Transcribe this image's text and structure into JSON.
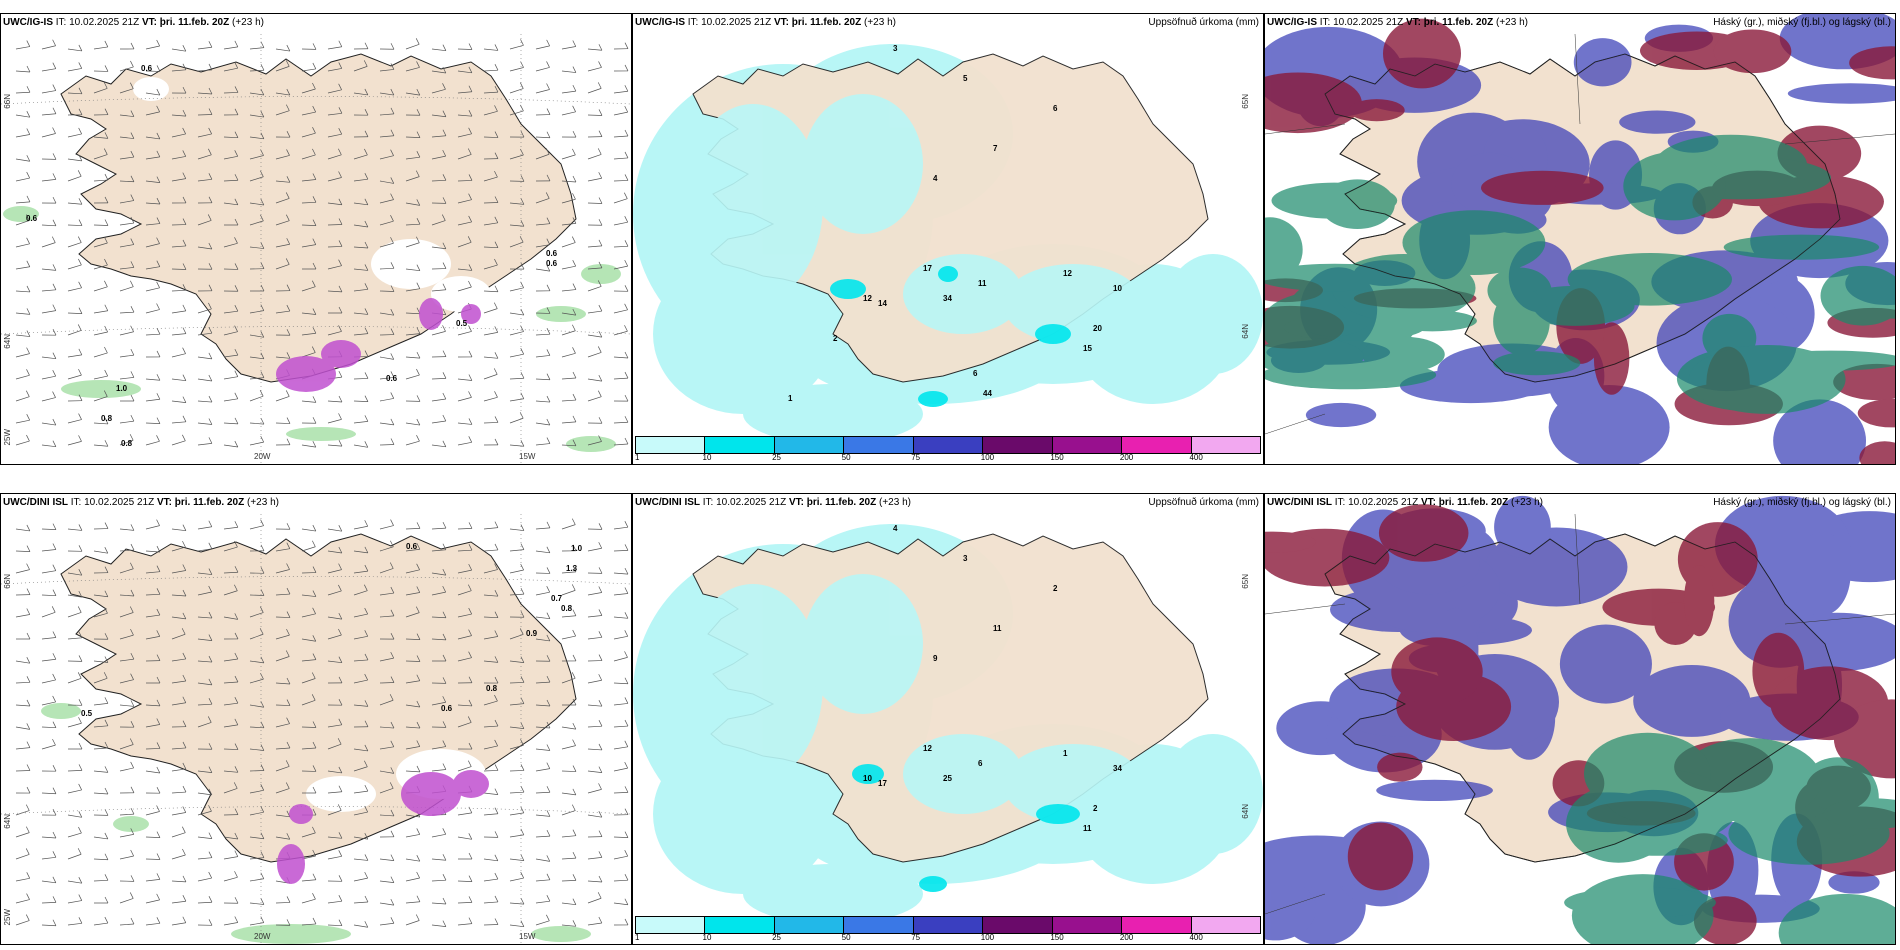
{
  "panels": [
    {
      "model": "UWC/IG-IS",
      "it_label": "IT:",
      "it_value": "10.02.2025 21Z",
      "vt_label": "VT:",
      "vt_value": "þri. 11.feb. 20Z",
      "lead": "(+23 h)",
      "right_title": "",
      "kind": "wind",
      "lat_labels": [
        "66N",
        "64N"
      ],
      "lon_labels": [
        "20W",
        "15W"
      ],
      "corner_lon": "25W",
      "values": [
        "0.6",
        "0.6",
        "0.6",
        "0.6",
        "0.5",
        "0.6",
        "1.0",
        "0.8",
        "0.8"
      ]
    },
    {
      "model": "UWC/IG-IS",
      "it_label": "IT:",
      "it_value": "10.02.2025 21Z",
      "vt_label": "VT:",
      "vt_value": "þri. 11.feb. 20Z",
      "lead": "(+23 h)",
      "right_title": "Uppsöfnuð úrkoma (mm)",
      "kind": "precip",
      "lat_labels": [
        "65N",
        "64N"
      ],
      "values": [
        "3",
        "5",
        "6",
        "7",
        "4",
        "12",
        "17",
        "34",
        "14",
        "11",
        "15",
        "10",
        "20",
        "12",
        "6",
        "44",
        "2",
        "1"
      ]
    },
    {
      "model": "UWC/IG-IS",
      "it_label": "IT:",
      "it_value": "10.02.2025 21Z",
      "vt_label": "VT:",
      "vt_value": "þri. 11.feb. 20Z",
      "lead": "(+23 h)",
      "right_title": "Háský (gr.), miðský (fj.bl.) og lágský (bl.)",
      "kind": "cloud"
    },
    {
      "model": "UWC/DINI ISL",
      "it_label": "IT:",
      "it_value": "10.02.2025 21Z",
      "vt_label": "VT:",
      "vt_value": "þri. 11.feb. 20Z",
      "lead": "(+23 h)",
      "right_title": "",
      "kind": "wind",
      "lat_labels": [
        "66N",
        "64N"
      ],
      "lon_labels": [
        "20W",
        "15W"
      ],
      "corner_lon": "25W",
      "values": [
        "0.6",
        "0.5",
        "1.0",
        "1.3",
        "0.7",
        "0.8",
        "0.9",
        "0.8",
        "0.6",
        "1.2"
      ]
    },
    {
      "model": "UWC/DINI ISL",
      "it_label": "IT:",
      "it_value": "10.02.2025 21Z",
      "vt_label": "VT:",
      "vt_value": "þri. 11.feb. 20Z",
      "lead": "(+23 h)",
      "right_title": "Uppsöfnuð úrkoma (mm)",
      "kind": "precip",
      "lat_labels": [
        "65N",
        "64N"
      ],
      "values": [
        "4",
        "3",
        "2",
        "11",
        "9",
        "10",
        "12",
        "25",
        "17",
        "6",
        "11",
        "34",
        "2",
        "1"
      ]
    },
    {
      "model": "UWC/DINI ISL",
      "it_label": "IT:",
      "it_value": "10.02.2025 21Z",
      "vt_label": "VT:",
      "vt_value": "þri. 11.feb. 20Z",
      "lead": "(+23 h)",
      "right_title": "Háský (gr.), miðský (fj.bl.) og lágský (bl.)",
      "kind": "cloud"
    }
  ],
  "legend": {
    "ticks": [
      "1",
      "10",
      "25",
      "50",
      "75",
      "100",
      "150",
      "200",
      "400"
    ],
    "colors": [
      "#c8fafa",
      "#00e5ec",
      "#22b8e8",
      "#3a78e6",
      "#3a3fc0",
      "#6a0a6a",
      "#98108e",
      "#e820b0",
      "#f2a8f0"
    ]
  },
  "colors": {
    "land": "#f2e1cf",
    "precip_light": "#b8f6f6",
    "precip_mid": "#00e5ec",
    "wind_green": "#7ad07a",
    "wind_purple": "#c050d0",
    "cloud_high": "#8a1a3a",
    "cloud_mid": "#3a3fb8",
    "cloud_low": "#1a8a6a"
  }
}
